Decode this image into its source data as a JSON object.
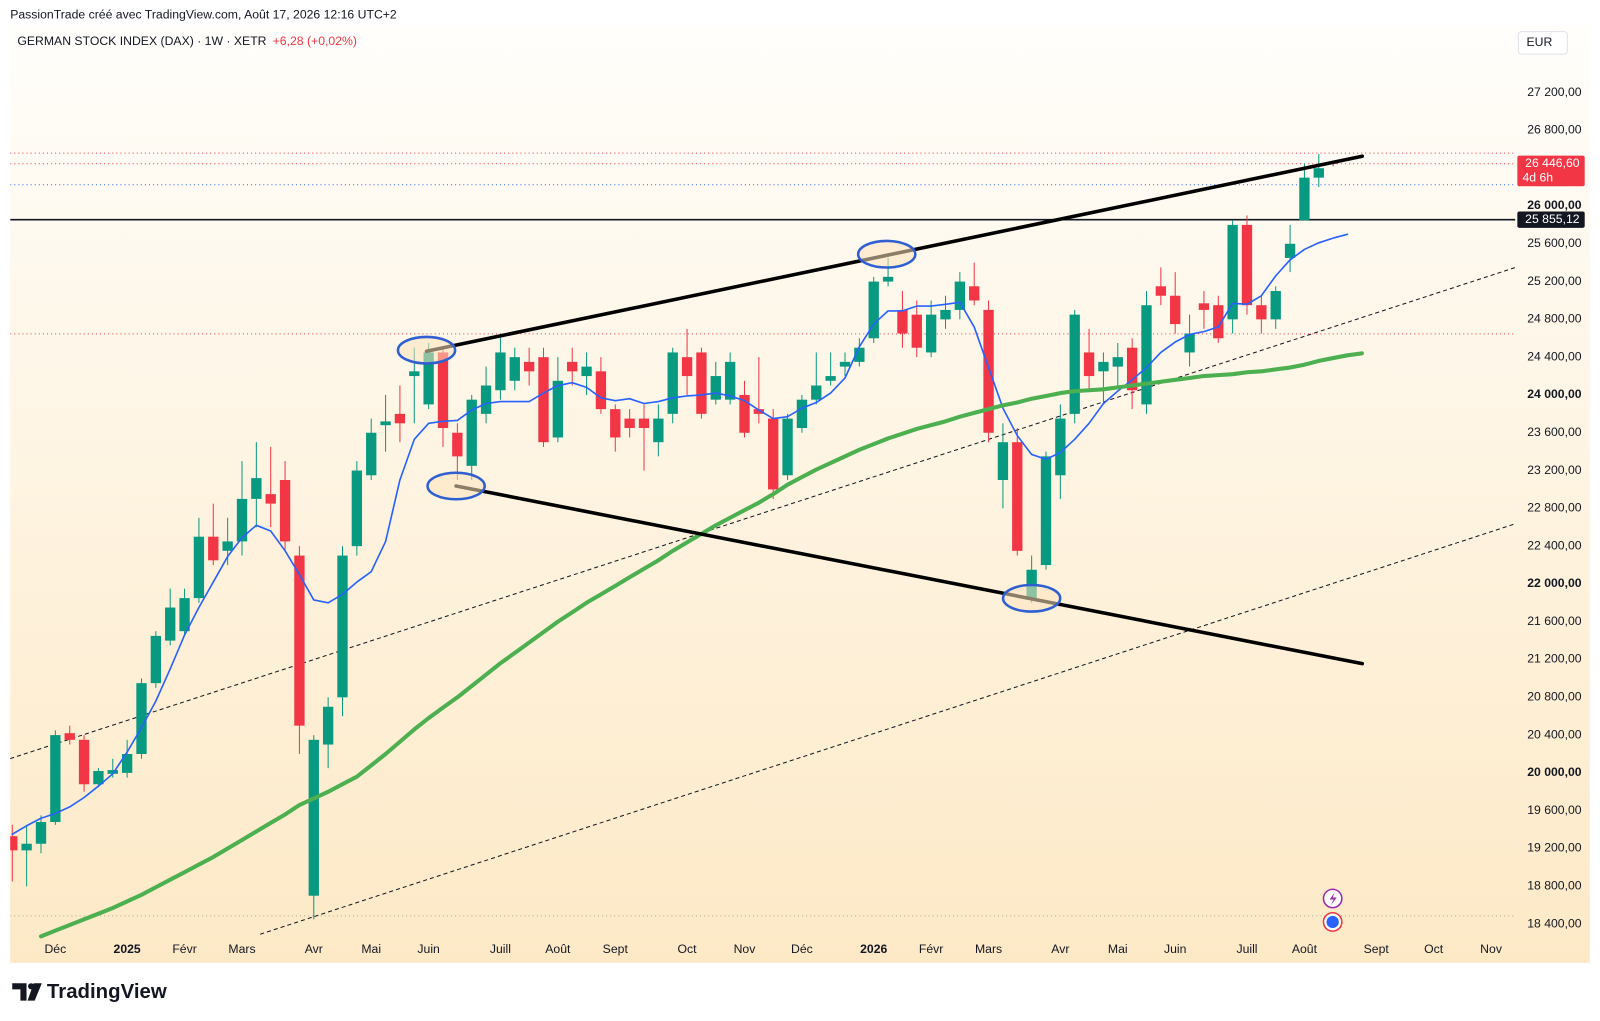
{
  "header": {
    "attribution": "PassionTrade créé avec TradingView.com, Août 17, 2026 12:16 UTC+2"
  },
  "footer": {
    "logo": "TradingView"
  },
  "chart_data": {
    "type": "candlestick",
    "title": "GERMAN STOCK INDEX (DAX) · 1W · XETR",
    "change": "+6,28 (+0,02%)",
    "currency": "EUR",
    "categories": [
      null,
      null,
      null,
      "Déc",
      null,
      null,
      null,
      null,
      "2025",
      null,
      null,
      null,
      "Févr",
      null,
      null,
      null,
      "Mars",
      null,
      null,
      null,
      null,
      "Avr",
      null,
      null,
      null,
      "Mai",
      null,
      null,
      null,
      "Juin",
      null,
      null,
      null,
      null,
      "Juill",
      null,
      null,
      null,
      "Août",
      null,
      null,
      null,
      "Sept",
      null,
      null,
      null,
      null,
      "Oct",
      null,
      null,
      null,
      "Nov",
      null,
      null,
      null,
      "Déc",
      null,
      null,
      null,
      null,
      "2026",
      null,
      null,
      null,
      "Févr",
      null,
      null,
      null,
      "Mars",
      null,
      null,
      null,
      null,
      "Avr",
      null,
      null,
      null,
      "Mai",
      null,
      null,
      null,
      "Juin",
      null,
      null,
      null,
      null,
      "Juill",
      null,
      null,
      null,
      "Août",
      null,
      null,
      null,
      null,
      "Sept",
      null,
      null,
      null,
      "Oct",
      null,
      null,
      null,
      "Nov"
    ],
    "open": [
      19330,
      19180,
      19250,
      19480,
      20420,
      20350,
      19880,
      19990,
      20000,
      20200,
      20950,
      21400,
      21500,
      21850,
      22500,
      22350,
      22450,
      22900,
      22950,
      23100,
      22300,
      18700,
      20300,
      20800,
      22400,
      23150,
      23680,
      23800,
      24200,
      23900,
      24450,
      23600,
      23250,
      23800,
      24050,
      24150,
      24350,
      24400,
      23550,
      24350,
      24200,
      24250,
      23850,
      23750,
      23750,
      23500,
      23800,
      24400,
      24450,
      23950,
      23950,
      24000,
      23850,
      23750,
      23150,
      23650,
      23950,
      24150,
      24300,
      24350,
      24600,
      25200,
      24900,
      24850,
      24450,
      24800,
      24900,
      25150,
      24900,
      23100,
      23500,
      21850,
      22200,
      23150,
      23800,
      24450,
      24250,
      24300,
      24500,
      23900,
      25150,
      25050,
      24450,
      24970,
      24950,
      24800,
      25800,
      24950,
      24800,
      25450,
      25850,
      26300,
      26460,
      null,
      null,
      null,
      null,
      null,
      null,
      null,
      null,
      null,
      null,
      null
    ],
    "high": [
      19450,
      19450,
      19550,
      20450,
      20500,
      20400,
      20050,
      20150,
      20350,
      21000,
      21500,
      21950,
      21950,
      22700,
      22850,
      22700,
      23300,
      23500,
      23450,
      23300,
      22400,
      20400,
      20800,
      22400,
      23300,
      23750,
      24000,
      24100,
      24500,
      24550,
      24500,
      23700,
      24000,
      24300,
      24650,
      24500,
      24500,
      24500,
      24400,
      24500,
      24450,
      24400,
      23900,
      23850,
      23900,
      23900,
      24500,
      24700,
      24500,
      24350,
      24450,
      24150,
      24400,
      23850,
      23800,
      24000,
      24450,
      24450,
      24450,
      24600,
      25250,
      25450,
      25100,
      25000,
      25000,
      25050,
      25300,
      25400,
      25000,
      23700,
      23650,
      22300,
      23400,
      23900,
      24900,
      24700,
      24450,
      24550,
      24600,
      25100,
      25350,
      25300,
      24850,
      25100,
      25050,
      25850,
      25900,
      25050,
      25150,
      25800,
      26450,
      26550,
      26470,
      null,
      null,
      null,
      null,
      null,
      null,
      null,
      null,
      null,
      null,
      null
    ],
    "low": [
      18850,
      18800,
      19150,
      19450,
      20300,
      19800,
      19850,
      19950,
      19950,
      20150,
      20900,
      21350,
      21450,
      21800,
      22200,
      22200,
      22300,
      22600,
      22600,
      22350,
      20200,
      18450,
      20050,
      20600,
      22300,
      23100,
      23400,
      23500,
      23700,
      23850,
      23450,
      23100,
      23100,
      23700,
      23950,
      24050,
      24100,
      23450,
      23500,
      24100,
      24000,
      23800,
      23400,
      23550,
      23200,
      23350,
      23700,
      24000,
      23750,
      23900,
      23900,
      23550,
      23700,
      22900,
      23100,
      23600,
      23900,
      24100,
      24200,
      24300,
      24550,
      25150,
      24500,
      24400,
      24400,
      24700,
      24800,
      24950,
      23500,
      22800,
      22300,
      21800,
      22150,
      22900,
      23700,
      24050,
      23900,
      24100,
      23850,
      23800,
      24950,
      24650,
      24300,
      24700,
      24550,
      24650,
      24850,
      24650,
      24700,
      25300,
      25850,
      26200,
      26420,
      null,
      null,
      null,
      null,
      null,
      null,
      null,
      null,
      null,
      null,
      null
    ],
    "close": [
      19180,
      19250,
      19480,
      20400,
      20350,
      19880,
      20020,
      20030,
      20200,
      20950,
      21450,
      21750,
      21850,
      22500,
      22250,
      22450,
      22900,
      23120,
      22850,
      22450,
      20500,
      20350,
      20700,
      22300,
      23200,
      23600,
      23720,
      23700,
      24250,
      24450,
      23650,
      23350,
      23950,
      24100,
      24450,
      24400,
      24250,
      23500,
      24150,
      24250,
      24300,
      23850,
      23550,
      23650,
      23650,
      23750,
      24450,
      24200,
      23800,
      24200,
      24350,
      23600,
      23800,
      23000,
      23750,
      23950,
      24100,
      24200,
      24350,
      24500,
      25200,
      25250,
      24650,
      24500,
      24850,
      24900,
      25200,
      25000,
      23600,
      23500,
      22350,
      22150,
      23350,
      23750,
      24850,
      24200,
      24350,
      24400,
      24050,
      24950,
      25050,
      24750,
      24650,
      24900,
      24600,
      25800,
      24950,
      24800,
      25100,
      25600,
      26300,
      26400,
      26446.6,
      null,
      null,
      null,
      null,
      null,
      null,
      null,
      null,
      null,
      null,
      null
    ],
    "up_color": "#089981",
    "down_color": "#f23645",
    "series": [
      {
        "color": "#2962ff",
        "values": [
          19350,
          19440,
          19520,
          19570,
          19640,
          19740,
          19860,
          19990,
          20220,
          20480,
          20760,
          21100,
          21460,
          21750,
          22020,
          22290,
          22490,
          22620,
          22560,
          22350,
          22100,
          21830,
          21800,
          21890,
          22020,
          22130,
          22450,
          23100,
          23530,
          23700,
          23720,
          23730,
          23840,
          23910,
          23930,
          23930,
          23930,
          24020,
          24100,
          24130,
          24080,
          23970,
          23940,
          23960,
          23910,
          23930,
          23970,
          23990,
          24000,
          24020,
          23990,
          23940,
          23840,
          23750,
          23770,
          23860,
          23920,
          24020,
          24180,
          24510,
          24750,
          24890,
          24890,
          24940,
          24940,
          24960,
          24980,
          24720,
          24290,
          23860,
          23570,
          23370,
          23320,
          23390,
          23530,
          23700,
          23910,
          24040,
          24160,
          24290,
          24450,
          24560,
          24640,
          24670,
          24720,
          24970,
          24960,
          25050,
          25260,
          25430,
          25540,
          25610,
          25660,
          25700,
          null,
          null,
          null,
          null,
          null,
          null,
          null,
          null,
          null,
          null
        ]
      },
      {
        "color": "#4caf50",
        "values": [
          null,
          null,
          18270,
          18330,
          18390,
          18450,
          18510,
          18570,
          18640,
          18710,
          18790,
          18870,
          18950,
          19030,
          19110,
          19200,
          19290,
          19380,
          19470,
          19560,
          19660,
          19730,
          19800,
          19880,
          19960,
          20080,
          20200,
          20330,
          20460,
          20580,
          20690,
          20800,
          20920,
          21040,
          21160,
          21270,
          21380,
          21490,
          21600,
          21700,
          21800,
          21890,
          21980,
          22070,
          22160,
          22250,
          22350,
          22440,
          22530,
          22620,
          22700,
          22780,
          22860,
          22950,
          23050,
          23130,
          23210,
          23280,
          23350,
          23420,
          23480,
          23540,
          23590,
          23640,
          23680,
          23720,
          23770,
          23810,
          23850,
          23890,
          23920,
          23960,
          23990,
          24020,
          24040,
          24050,
          24060,
          24080,
          24100,
          24120,
          24140,
          24160,
          24180,
          24200,
          24210,
          24220,
          24240,
          24250,
          24270,
          24290,
          24320,
          24360,
          24390,
          24420,
          24440,
          null,
          null,
          null,
          null,
          null,
          null,
          null,
          null,
          null
        ]
      }
    ],
    "ylim": [
      17990,
      27910
    ],
    "yticks": [
      {
        "value": 18400,
        "label": "18 400,00"
      },
      {
        "value": 18800,
        "label": "18 800,00"
      },
      {
        "value": 19200,
        "label": "19 200,00"
      },
      {
        "value": 19600,
        "label": "19 600,00"
      },
      {
        "value": 20000,
        "label": "20 000,00"
      },
      {
        "value": 20400,
        "label": "20 400,00"
      },
      {
        "value": 20800,
        "label": "20 800,00"
      },
      {
        "value": 21200,
        "label": "21 200,00"
      },
      {
        "value": 21600,
        "label": "21 600,00"
      },
      {
        "value": 22000,
        "label": "22 000,00"
      },
      {
        "value": 22400,
        "label": "22 400,00"
      },
      {
        "value": 22800,
        "label": "22 800,00"
      },
      {
        "value": 23200,
        "label": "23 200,00"
      },
      {
        "value": 23600,
        "label": "23 600,00"
      },
      {
        "value": 24000,
        "label": "24 000,00"
      },
      {
        "value": 24400,
        "label": "24 400,00"
      },
      {
        "value": 24800,
        "label": "24 800,00"
      },
      {
        "value": 25200,
        "label": "25 200,00"
      },
      {
        "value": 25600,
        "label": "25 600,00"
      },
      {
        "value": 26000,
        "label": "26 000,00"
      },
      {
        "value": 26800,
        "label": "26 800,00"
      },
      {
        "value": 27200,
        "label": "27 200,00"
      }
    ],
    "price_labels": [
      {
        "value": 26446.6,
        "label": "26 446,60",
        "note": "4d 6h",
        "color": "#f23645",
        "line_style": "dotted"
      },
      {
        "value": 25855.12,
        "label": "25 855,12",
        "color": "#131722",
        "line_style": "solid"
      }
    ],
    "grid": false
  }
}
